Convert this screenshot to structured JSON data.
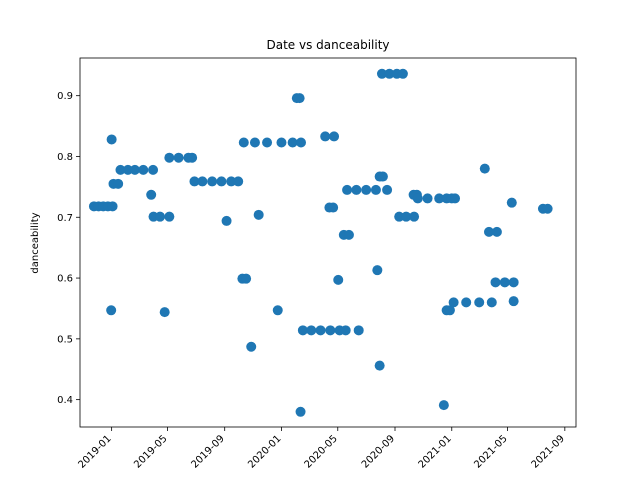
{
  "chart_data": {
    "type": "scatter",
    "title": "Date vs danceability",
    "xlabel": "",
    "ylabel": "danceability",
    "color": "#1f77b4",
    "xlim": [
      "2018-10-25",
      "2021-09-25"
    ],
    "ylim": [
      0.355,
      0.962
    ],
    "x_ticks": [
      "2019-01",
      "2019-05",
      "2019-09",
      "2020-01",
      "2020-05",
      "2020-09",
      "2021-01",
      "2021-05",
      "2021-09"
    ],
    "y_ticks": [
      0.4,
      0.5,
      0.6,
      0.7,
      0.8,
      0.9
    ],
    "grid": false,
    "points": [
      {
        "x": "2018-11-24",
        "y": 0.718
      },
      {
        "x": "2018-12-04",
        "y": 0.718
      },
      {
        "x": "2018-12-14",
        "y": 0.718
      },
      {
        "x": "2018-12-24",
        "y": 0.718
      },
      {
        "x": "2018-12-31",
        "y": 0.547
      },
      {
        "x": "2019-01-01",
        "y": 0.828
      },
      {
        "x": "2019-01-03",
        "y": 0.718
      },
      {
        "x": "2019-01-05",
        "y": 0.755
      },
      {
        "x": "2019-01-15",
        "y": 0.755
      },
      {
        "x": "2019-01-20",
        "y": 0.778
      },
      {
        "x": "2019-02-05",
        "y": 0.778
      },
      {
        "x": "2019-02-20",
        "y": 0.778
      },
      {
        "x": "2019-03-10",
        "y": 0.778
      },
      {
        "x": "2019-03-31",
        "y": 0.778
      },
      {
        "x": "2019-03-27",
        "y": 0.737
      },
      {
        "x": "2019-04-01",
        "y": 0.701
      },
      {
        "x": "2019-04-15",
        "y": 0.701
      },
      {
        "x": "2019-05-05",
        "y": 0.701
      },
      {
        "x": "2019-04-25",
        "y": 0.544
      },
      {
        "x": "2019-05-05",
        "y": 0.798
      },
      {
        "x": "2019-05-25",
        "y": 0.798
      },
      {
        "x": "2019-06-15",
        "y": 0.798
      },
      {
        "x": "2019-06-23",
        "y": 0.798
      },
      {
        "x": "2019-06-28",
        "y": 0.759
      },
      {
        "x": "2019-07-15",
        "y": 0.759
      },
      {
        "x": "2019-08-05",
        "y": 0.759
      },
      {
        "x": "2019-08-25",
        "y": 0.759
      },
      {
        "x": "2019-09-15",
        "y": 0.759
      },
      {
        "x": "2019-09-30",
        "y": 0.759
      },
      {
        "x": "2019-09-05",
        "y": 0.694
      },
      {
        "x": "2019-10-09",
        "y": 0.599
      },
      {
        "x": "2019-10-17",
        "y": 0.599
      },
      {
        "x": "2019-10-12",
        "y": 0.823
      },
      {
        "x": "2019-11-05",
        "y": 0.823
      },
      {
        "x": "2019-12-01",
        "y": 0.823
      },
      {
        "x": "2020-01-01",
        "y": 0.823
      },
      {
        "x": "2020-01-25",
        "y": 0.823
      },
      {
        "x": "2020-02-12",
        "y": 0.823
      },
      {
        "x": "2019-10-28",
        "y": 0.487
      },
      {
        "x": "2019-11-13",
        "y": 0.704
      },
      {
        "x": "2019-12-24",
        "y": 0.547
      },
      {
        "x": "2020-02-03",
        "y": 0.896
      },
      {
        "x": "2020-02-09",
        "y": 0.896
      },
      {
        "x": "2020-02-11",
        "y": 0.38
      },
      {
        "x": "2020-02-16",
        "y": 0.514
      },
      {
        "x": "2020-03-05",
        "y": 0.514
      },
      {
        "x": "2020-03-25",
        "y": 0.514
      },
      {
        "x": "2020-04-15",
        "y": 0.514
      },
      {
        "x": "2020-05-05",
        "y": 0.514
      },
      {
        "x": "2020-05-18",
        "y": 0.514
      },
      {
        "x": "2020-04-04",
        "y": 0.833
      },
      {
        "x": "2020-04-23",
        "y": 0.833
      },
      {
        "x": "2020-04-13",
        "y": 0.716
      },
      {
        "x": "2020-04-21",
        "y": 0.716
      },
      {
        "x": "2020-05-02",
        "y": 0.597
      },
      {
        "x": "2020-05-14",
        "y": 0.671
      },
      {
        "x": "2020-05-25",
        "y": 0.671
      },
      {
        "x": "2020-05-21",
        "y": 0.745
      },
      {
        "x": "2020-06-10",
        "y": 0.745
      },
      {
        "x": "2020-07-01",
        "y": 0.745
      },
      {
        "x": "2020-07-22",
        "y": 0.745
      },
      {
        "x": "2020-06-15",
        "y": 0.514
      },
      {
        "x": "2020-07-25",
        "y": 0.613
      },
      {
        "x": "2020-07-30",
        "y": 0.767
      },
      {
        "x": "2020-08-06",
        "y": 0.767
      },
      {
        "x": "2020-07-30",
        "y": 0.456
      },
      {
        "x": "2020-08-04",
        "y": 0.936
      },
      {
        "x": "2020-08-20",
        "y": 0.936
      },
      {
        "x": "2020-09-05",
        "y": 0.936
      },
      {
        "x": "2020-09-18",
        "y": 0.936
      },
      {
        "x": "2020-08-15",
        "y": 0.745
      },
      {
        "x": "2020-09-10",
        "y": 0.701
      },
      {
        "x": "2020-09-25",
        "y": 0.701
      },
      {
        "x": "2020-10-12",
        "y": 0.701
      },
      {
        "x": "2020-10-11",
        "y": 0.737
      },
      {
        "x": "2020-10-18",
        "y": 0.737
      },
      {
        "x": "2020-10-20",
        "y": 0.731
      },
      {
        "x": "2020-11-10",
        "y": 0.731
      },
      {
        "x": "2020-12-05",
        "y": 0.731
      },
      {
        "x": "2020-12-21",
        "y": 0.731
      },
      {
        "x": "2020-12-15",
        "y": 0.391
      },
      {
        "x": "2020-12-21",
        "y": 0.547
      },
      {
        "x": "2020-12-28",
        "y": 0.547
      },
      {
        "x": "2021-01-01",
        "y": 0.731
      },
      {
        "x": "2021-01-08",
        "y": 0.731
      },
      {
        "x": "2021-01-05",
        "y": 0.56
      },
      {
        "x": "2021-02-01",
        "y": 0.56
      },
      {
        "x": "2021-03-01",
        "y": 0.56
      },
      {
        "x": "2021-03-28",
        "y": 0.56
      },
      {
        "x": "2021-03-13",
        "y": 0.78
      },
      {
        "x": "2021-03-22",
        "y": 0.676
      },
      {
        "x": "2021-04-08",
        "y": 0.676
      },
      {
        "x": "2021-04-05",
        "y": 0.593
      },
      {
        "x": "2021-04-25",
        "y": 0.593
      },
      {
        "x": "2021-05-14",
        "y": 0.593
      },
      {
        "x": "2021-05-10",
        "y": 0.724
      },
      {
        "x": "2021-05-14",
        "y": 0.562
      },
      {
        "x": "2021-07-16",
        "y": 0.714
      },
      {
        "x": "2021-07-26",
        "y": 0.714
      }
    ]
  }
}
